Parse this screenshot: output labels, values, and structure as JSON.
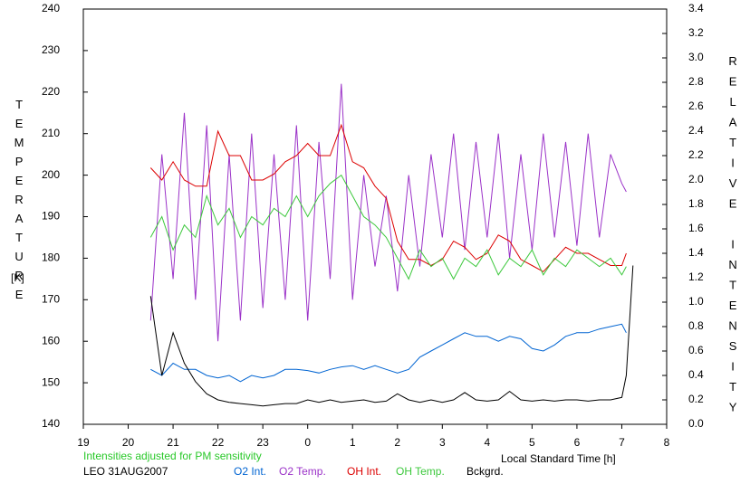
{
  "chart_data": {
    "type": "line",
    "x_label": "Local Standard Time [h]",
    "y_label": "TEMPERATURE",
    "y_unit": "[K]",
    "y2_label": "RELATIVE INTENSITY",
    "annotation": "Intensities adjusted for PM sensitivity",
    "footer": "LEO 31AUG2007",
    "xlim": [
      19,
      32
    ],
    "xticks": [
      19,
      20,
      21,
      22,
      23,
      {
        "value": 24,
        "label": "0"
      },
      {
        "value": 25,
        "label": "1"
      },
      {
        "value": 26,
        "label": "2"
      },
      {
        "value": 27,
        "label": "3"
      },
      {
        "value": 28,
        "label": "4"
      },
      {
        "value": 29,
        "label": "5"
      },
      {
        "value": 30,
        "label": "6"
      },
      {
        "value": 31,
        "label": "7"
      },
      {
        "value": 32,
        "label": "8"
      }
    ],
    "ylim": [
      140,
      240
    ],
    "yticks": [
      140,
      150,
      160,
      170,
      180,
      190,
      200,
      210,
      220,
      230,
      240
    ],
    "y2lim": [
      0,
      3.4
    ],
    "y2ticks": [
      {
        "value": 0,
        "label": "0.0"
      },
      0.2,
      0.4,
      0.6,
      0.8,
      {
        "value": 1,
        "label": "1.0"
      },
      1.2,
      1.4,
      1.6,
      1.8,
      {
        "value": 2,
        "label": "2.0"
      },
      2.2,
      2.4,
      2.6,
      2.8,
      {
        "value": 3,
        "label": "3.0"
      },
      3.2,
      3.4
    ],
    "x": [
      20.5,
      20.75,
      21,
      21.25,
      21.5,
      21.75,
      22,
      22.25,
      22.5,
      22.75,
      23,
      23.25,
      23.5,
      23.75,
      24,
      24.25,
      24.5,
      24.75,
      25,
      25.25,
      25.5,
      25.75,
      26,
      26.25,
      26.5,
      26.75,
      27,
      27.25,
      27.5,
      27.75,
      28,
      28.25,
      28.5,
      28.75,
      29,
      29.25,
      29.5,
      29.75,
      30,
      30.25,
      30.5,
      30.75,
      31,
      31.1,
      31.25
    ],
    "series": [
      {
        "name": "O2 Int.",
        "color": "#0064d2",
        "axis": "y2",
        "values": [
          0.45,
          0.4,
          0.5,
          0.45,
          0.45,
          0.4,
          0.38,
          0.4,
          0.35,
          0.4,
          0.38,
          0.4,
          0.45,
          0.45,
          0.44,
          0.42,
          0.45,
          0.47,
          0.48,
          0.45,
          0.48,
          0.45,
          0.42,
          0.45,
          0.55,
          0.6,
          0.65,
          0.7,
          0.75,
          0.72,
          0.72,
          0.68,
          0.72,
          0.7,
          0.62,
          0.6,
          0.65,
          0.72,
          0.75,
          0.75,
          0.78,
          0.8,
          0.82,
          0.75,
          null
        ]
      },
      {
        "name": "O2 Temp.",
        "color": "#9b32c8",
        "values": [
          165,
          205,
          175,
          215,
          170,
          212,
          160,
          205,
          165,
          210,
          168,
          205,
          170,
          212,
          165,
          208,
          175,
          222,
          170,
          200,
          178,
          195,
          172,
          200,
          178,
          205,
          185,
          210,
          182,
          208,
          185,
          210,
          180,
          205,
          182,
          210,
          185,
          208,
          183,
          210,
          185,
          205,
          198,
          196,
          null
        ]
      },
      {
        "name": "OH Int.",
        "color": "#dc0000",
        "axis": "y2",
        "values": [
          2.1,
          2.0,
          2.15,
          2.0,
          1.95,
          1.95,
          2.4,
          2.2,
          2.2,
          2.0,
          2.0,
          2.05,
          2.15,
          2.2,
          2.3,
          2.2,
          2.2,
          2.45,
          2.15,
          2.1,
          1.95,
          1.85,
          1.5,
          1.35,
          1.35,
          1.3,
          1.35,
          1.5,
          1.45,
          1.35,
          1.4,
          1.55,
          1.5,
          1.35,
          1.3,
          1.25,
          1.35,
          1.45,
          1.4,
          1.4,
          1.35,
          1.3,
          1.3,
          1.4,
          null
        ]
      },
      {
        "name": "OH Temp.",
        "color": "#3cc83c",
        "values": [
          185,
          190,
          182,
          188,
          185,
          195,
          188,
          192,
          185,
          190,
          188,
          192,
          190,
          195,
          190,
          195,
          198,
          200,
          195,
          190,
          188,
          185,
          180,
          175,
          182,
          178,
          180,
          175,
          180,
          178,
          182,
          176,
          180,
          178,
          182,
          176,
          180,
          178,
          182,
          180,
          178,
          180,
          176,
          178,
          null
        ]
      },
      {
        "name": "Bckgrd.",
        "color": "#000000",
        "axis": "y2",
        "values": [
          1.05,
          0.4,
          0.75,
          0.5,
          0.35,
          0.25,
          0.2,
          0.18,
          0.17,
          0.16,
          0.15,
          0.16,
          0.17,
          0.17,
          0.2,
          0.18,
          0.2,
          0.18,
          0.19,
          0.2,
          0.18,
          0.19,
          0.25,
          0.2,
          0.18,
          0.2,
          0.18,
          0.2,
          0.26,
          0.2,
          0.19,
          0.2,
          0.27,
          0.2,
          0.19,
          0.2,
          0.19,
          0.2,
          0.2,
          0.19,
          0.2,
          0.2,
          0.22,
          0.4,
          1.3
        ]
      }
    ]
  }
}
